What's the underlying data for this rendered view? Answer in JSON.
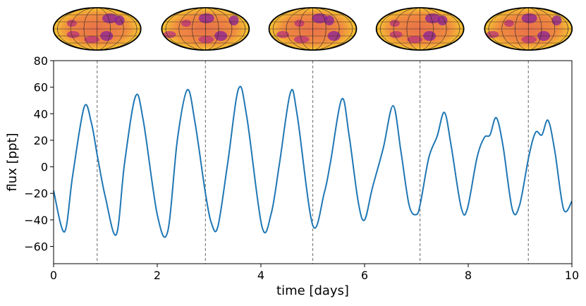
{
  "chart_data": {
    "type": "line",
    "title": "",
    "xlabel": "time [days]",
    "ylabel": "flux [ppt]",
    "xlim": [
      0,
      10
    ],
    "ylim": [
      -73,
      80
    ],
    "xticks": [
      0,
      2,
      4,
      6,
      8,
      10
    ],
    "xtick_labels": [
      "0",
      "2",
      "4",
      "6",
      "8",
      "10"
    ],
    "yticks": [
      -60,
      -40,
      -20,
      0,
      20,
      40,
      60,
      80
    ],
    "ytick_labels": [
      "−60",
      "−40",
      "−20",
      "0",
      "20",
      "40",
      "60",
      "80"
    ],
    "grid": false,
    "line_color": "#1f77b4",
    "vlines": [
      0.84,
      2.93,
      5.0,
      7.07,
      9.16
    ],
    "vline_color": "#808080",
    "map_count": 5,
    "series": [
      {
        "name": "flux",
        "x": [
          0.0,
          0.21,
          0.37,
          0.59,
          0.73,
          0.85,
          1.0,
          1.21,
          1.37,
          1.58,
          1.73,
          2.0,
          2.2,
          2.39,
          2.58,
          2.73,
          2.93,
          3.05,
          3.17,
          3.36,
          3.57,
          3.73,
          4.02,
          4.2,
          4.36,
          4.57,
          4.7,
          5.0,
          5.22,
          5.34,
          5.56,
          5.7,
          5.88,
          6.0,
          6.15,
          6.36,
          6.55,
          6.7,
          6.86,
          7.0,
          7.08,
          7.24,
          7.4,
          7.54,
          7.67,
          7.86,
          7.98,
          8.17,
          8.31,
          8.42,
          8.54,
          8.67,
          8.85,
          8.99,
          9.17,
          9.3,
          9.42,
          9.54,
          9.67,
          9.84,
          10.0
        ],
        "y": [
          -18,
          -49,
          -6,
          45,
          33,
          7,
          -23,
          -51,
          3,
          53,
          35,
          -36,
          -49,
          21,
          58,
          33,
          -20,
          -43,
          -45,
          3,
          59,
          37,
          -45,
          -35,
          3,
          56,
          39,
          -44,
          -20,
          3,
          51,
          24,
          -27,
          -40,
          -16,
          14,
          46,
          12,
          -29,
          -36,
          -27,
          7,
          23,
          41,
          16,
          -30,
          -32,
          7,
          22,
          24,
          37,
          16,
          -32,
          -29,
          8,
          26,
          24,
          35,
          12,
          -32,
          -26
        ]
      }
    ]
  }
}
